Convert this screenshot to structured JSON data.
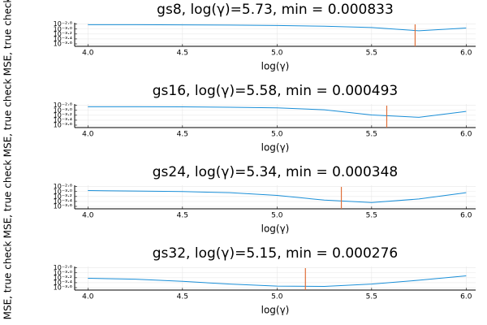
{
  "chart_data": [
    {
      "type": "line",
      "title": "gs8, log(γ)=5.73, min = 0.000833",
      "xlabel": "log(γ)",
      "ylabel": "MSE, true check",
      "x": [
        4.0,
        4.25,
        4.5,
        4.75,
        5.0,
        5.25,
        5.5,
        5.75,
        6.0
      ],
      "series": [
        {
          "color": "#1a8fd8",
          "values": [
            0.0015,
            0.0015,
            0.00148,
            0.00145,
            0.0014,
            0.0013,
            0.00115,
            0.00085,
            0.0011
          ]
        }
      ],
      "vline": 5.73,
      "vline_color": "#e0703a",
      "xlim": [
        3.93,
        6.05
      ],
      "ylim": [
        0.0002,
        0.0018
      ],
      "yscale": "log",
      "xticks": [
        {
          "value": 4,
          "label": "4.0"
        },
        4.5,
        {
          "value": 5,
          "label": "5.0"
        },
        5.5,
        {
          "value": 6,
          "label": "6.0"
        }
      ],
      "yticks": [
        {
          "value": 0.001585,
          "label": "10⁻²·⁸"
        },
        {
          "value": 0.001,
          "label": "10⁻³·⁰"
        },
        {
          "value": 0.000631,
          "label": "10⁻³·²"
        },
        {
          "value": 0.000398,
          "label": "10⁻³·⁴"
        },
        {
          "value": 0.000251,
          "label": "10⁻³·⁶"
        }
      ],
      "grid": true
    },
    {
      "type": "line",
      "title": "gs16, log(γ)=5.58, min = 0.000493",
      "xlabel": "log(γ)",
      "ylabel": "MSE, true check",
      "x": [
        4.0,
        4.25,
        4.5,
        4.75,
        5.0,
        5.25,
        5.5,
        5.75,
        6.0
      ],
      "series": [
        {
          "color": "#1a8fd8",
          "values": [
            0.0014,
            0.0014,
            0.00138,
            0.00133,
            0.00125,
            0.00105,
            0.00065,
            0.00052,
            0.0009
          ]
        }
      ],
      "vline": 5.58,
      "vline_color": "#e0703a",
      "xlim": [
        3.93,
        6.05
      ],
      "ylim": [
        0.0002,
        0.0018
      ],
      "yscale": "log",
      "xticks": [
        {
          "value": 4,
          "label": "4.0"
        },
        4.5,
        {
          "value": 5,
          "label": "5.0"
        },
        5.5,
        {
          "value": 6,
          "label": "6.0"
        }
      ],
      "yticks": [
        {
          "value": 0.001585,
          "label": "10⁻²·⁸"
        },
        {
          "value": 0.001,
          "label": "10⁻³·⁰"
        },
        {
          "value": 0.000631,
          "label": "10⁻³·²"
        },
        {
          "value": 0.000398,
          "label": "10⁻³·⁴"
        },
        {
          "value": 0.000251,
          "label": "10⁻³·⁶"
        }
      ],
      "grid": true
    },
    {
      "type": "line",
      "title": "gs24, log(γ)=5.34, min = 0.000348",
      "xlabel": "log(γ)",
      "ylabel": "MSE, true check",
      "x": [
        4.0,
        4.25,
        4.5,
        4.75,
        5.0,
        5.25,
        5.5,
        5.75,
        6.0
      ],
      "series": [
        {
          "color": "#1a8fd8",
          "values": [
            0.0011,
            0.00105,
            0.001,
            0.0009,
            0.0007,
            0.00045,
            0.00036,
            0.0005,
            0.0009
          ]
        }
      ],
      "vline": 5.34,
      "vline_color": "#e0703a",
      "xlim": [
        3.93,
        6.05
      ],
      "ylim": [
        0.0002,
        0.0018
      ],
      "yscale": "log",
      "xticks": [
        {
          "value": 4,
          "label": "4.0"
        },
        4.5,
        {
          "value": 5,
          "label": "5.0"
        },
        5.5,
        {
          "value": 6,
          "label": "6.0"
        }
      ],
      "yticks": [
        {
          "value": 0.001585,
          "label": "10⁻²·⁸"
        },
        {
          "value": 0.001,
          "label": "10⁻³·⁰"
        },
        {
          "value": 0.000631,
          "label": "10⁻³·²"
        },
        {
          "value": 0.000398,
          "label": "10⁻³·⁴"
        },
        {
          "value": 0.000251,
          "label": "10⁻³·⁶"
        }
      ],
      "grid": true
    },
    {
      "type": "line",
      "title": "gs32, log(γ)=5.15, min = 0.000276",
      "xlabel": "log(γ)",
      "ylabel": "MSE, true check",
      "x": [
        4.0,
        4.25,
        4.5,
        4.75,
        5.0,
        5.25,
        5.5,
        5.75,
        6.0
      ],
      "series": [
        {
          "color": "#1a8fd8",
          "values": [
            0.0006,
            0.00055,
            0.00045,
            0.00035,
            0.00029,
            0.00028,
            0.00035,
            0.0005,
            0.00075
          ]
        }
      ],
      "vline": 5.15,
      "vline_color": "#e0703a",
      "xlim": [
        3.93,
        6.05
      ],
      "ylim": [
        0.0002,
        0.0018
      ],
      "yscale": "log",
      "xticks": [
        {
          "value": 4,
          "label": "4.0"
        },
        4.5,
        {
          "value": 5,
          "label": "5.0"
        },
        5.5,
        {
          "value": 6,
          "label": "6.0"
        }
      ],
      "yticks": [
        {
          "value": 0.001585,
          "label": "10⁻²·⁸"
        },
        {
          "value": 0.001,
          "label": "10⁻³·⁰"
        },
        {
          "value": 0.000631,
          "label": "10⁻³·²"
        },
        {
          "value": 0.000398,
          "label": "10⁻³·⁴"
        },
        {
          "value": 0.000251,
          "label": "10⁻³·⁶"
        }
      ],
      "grid": true
    }
  ]
}
